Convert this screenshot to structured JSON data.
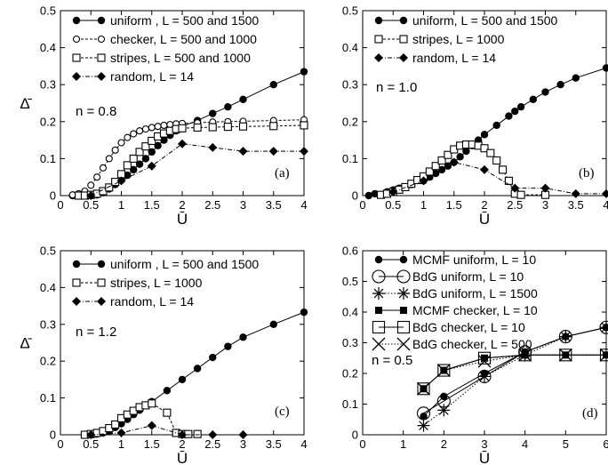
{
  "chart_data": [
    {
      "type": "line",
      "panel_label": "(a)",
      "annotation": "n = 0.8",
      "xlabel": "Ū",
      "ylabel": "Δ̄",
      "xlim": [
        0,
        4
      ],
      "ylim": [
        0,
        0.5
      ],
      "xticks": [
        "0",
        "0.5",
        "1",
        "1.5",
        "2",
        "2.5",
        "3",
        "3.5",
        "4"
      ],
      "yticks": [
        "0",
        "0.1",
        "0.2",
        "0.3",
        "0.4",
        "0.5"
      ],
      "legend_position": "top-left",
      "series": [
        {
          "name": "uniform , L = 500 and 1500",
          "marker": "filled-circle",
          "line": "solid",
          "x": [
            0.2,
            0.3,
            0.4,
            0.5,
            0.6,
            0.7,
            0.8,
            0.9,
            1.0,
            1.1,
            1.2,
            1.3,
            1.4,
            1.5,
            1.6,
            1.7,
            1.8,
            1.9,
            2.0,
            2.25,
            2.5,
            2.75,
            3.0,
            3.5,
            4.0
          ],
          "y": [
            0,
            0,
            0,
            0,
            0.002,
            0.008,
            0.018,
            0.03,
            0.042,
            0.055,
            0.07,
            0.085,
            0.1,
            0.118,
            0.135,
            0.15,
            0.163,
            0.175,
            0.187,
            0.203,
            0.222,
            0.24,
            0.26,
            0.3,
            0.335
          ]
        },
        {
          "name": "checker, L = 500 and 1000",
          "marker": "open-circle",
          "line": "dashed",
          "x": [
            0.2,
            0.3,
            0.4,
            0.5,
            0.6,
            0.7,
            0.8,
            0.9,
            1.0,
            1.1,
            1.2,
            1.3,
            1.4,
            1.5,
            1.6,
            1.7,
            1.8,
            1.9,
            2.0,
            2.25,
            2.5,
            2.75,
            3.0,
            3.5,
            4.0
          ],
          "y": [
            0.002,
            0.005,
            0.012,
            0.028,
            0.05,
            0.075,
            0.1,
            0.123,
            0.143,
            0.157,
            0.167,
            0.175,
            0.18,
            0.184,
            0.187,
            0.19,
            0.192,
            0.194,
            0.195,
            0.197,
            0.199,
            0.2,
            0.201,
            0.203,
            0.205
          ]
        },
        {
          "name": "stripes, L = 500 and 1000",
          "marker": "open-square",
          "line": "dashed",
          "x": [
            0.3,
            0.4,
            0.5,
            0.6,
            0.7,
            0.8,
            0.9,
            1.0,
            1.1,
            1.2,
            1.3,
            1.4,
            1.5,
            1.6,
            1.7,
            1.8,
            1.9,
            2.0,
            2.25,
            2.5,
            2.75,
            3.0,
            3.5,
            4.0
          ],
          "y": [
            0,
            0,
            0.002,
            0.005,
            0.012,
            0.022,
            0.037,
            0.058,
            0.082,
            0.1,
            0.118,
            0.133,
            0.148,
            0.16,
            0.168,
            0.175,
            0.18,
            0.182,
            0.184,
            0.185,
            0.186,
            0.187,
            0.188,
            0.19
          ]
        },
        {
          "name": "random, L = 14",
          "marker": "filled-diamond",
          "line": "dash-dot",
          "x": [
            0.5,
            1.0,
            1.5,
            2.0,
            2.5,
            3.0,
            3.5,
            4.0
          ],
          "y": [
            0,
            0.04,
            0.08,
            0.14,
            0.13,
            0.12,
            0.12,
            0.12
          ]
        }
      ]
    },
    {
      "type": "line",
      "panel_label": "(b)",
      "annotation": "n = 1.0",
      "xlabel": "Ū",
      "ylabel": "",
      "xlim": [
        0,
        4
      ],
      "ylim": [
        0,
        0.5
      ],
      "xticks": [
        "0",
        "0.5",
        "1",
        "1.5",
        "2",
        "2.5",
        "3",
        "3.5",
        "4"
      ],
      "yticks": [
        "0",
        "0.1",
        "0.2",
        "0.3",
        "0.4",
        "0.5"
      ],
      "legend_position": "top-left",
      "series": [
        {
          "name": "uniform, L = 500 and 1500",
          "marker": "filled-circle",
          "line": "solid",
          "x": [
            0.1,
            0.2,
            0.4,
            0.5,
            0.6,
            0.8,
            1.0,
            1.1,
            1.2,
            1.3,
            1.4,
            1.5,
            1.6,
            1.7,
            1.8,
            1.9,
            2.0,
            2.2,
            2.4,
            2.5,
            2.6,
            2.8,
            3.0,
            3.25,
            3.5,
            4.0
          ],
          "y": [
            0,
            0.005,
            0.01,
            0.015,
            0.02,
            0.03,
            0.04,
            0.05,
            0.06,
            0.07,
            0.08,
            0.09,
            0.105,
            0.12,
            0.135,
            0.15,
            0.165,
            0.19,
            0.215,
            0.228,
            0.24,
            0.26,
            0.28,
            0.3,
            0.318,
            0.345
          ]
        },
        {
          "name": "stripes, L = 1000",
          "marker": "open-square",
          "line": "dashed",
          "x": [
            0.3,
            0.4,
            0.5,
            0.6,
            0.7,
            0.8,
            0.9,
            1.0,
            1.1,
            1.2,
            1.3,
            1.4,
            1.5,
            1.6,
            1.7,
            1.8,
            1.9,
            2.0,
            2.1,
            2.2,
            2.3,
            2.4,
            2.5,
            2.6,
            3.0
          ],
          "y": [
            0.002,
            0.005,
            0.01,
            0.016,
            0.023,
            0.032,
            0.042,
            0.052,
            0.065,
            0.08,
            0.095,
            0.11,
            0.125,
            0.135,
            0.138,
            0.138,
            0.135,
            0.128,
            0.115,
            0.095,
            0.07,
            0.04,
            0.005,
            0.002,
            0.002
          ]
        },
        {
          "name": "random, L = 14",
          "marker": "filled-diamond",
          "line": "dash-dot",
          "x": [
            0.5,
            1.0,
            1.5,
            2.0,
            2.5,
            3.0,
            3.5,
            4.0
          ],
          "y": [
            0.01,
            0.04,
            0.09,
            0.07,
            0.02,
            0.02,
            0.005,
            0.005
          ]
        }
      ]
    },
    {
      "type": "line",
      "panel_label": "(c)",
      "annotation": "n = 1.2",
      "xlabel": "Ū",
      "ylabel": "Δ̄",
      "xlim": [
        0,
        4
      ],
      "ylim": [
        0,
        0.5
      ],
      "xticks": [
        "0",
        "0.5",
        "1",
        "1.5",
        "2",
        "2.5",
        "3",
        "3.5",
        "4"
      ],
      "yticks": [
        "0",
        "0.1",
        "0.2",
        "0.3",
        "0.4",
        "0.5"
      ],
      "legend_position": "top-left",
      "series": [
        {
          "name": "uniform , L = 500 and 1500",
          "marker": "filled-circle",
          "line": "solid",
          "x": [
            0.4,
            0.5,
            0.6,
            0.7,
            0.8,
            0.9,
            1.0,
            1.1,
            1.2,
            1.3,
            1.4,
            1.5,
            1.75,
            2.0,
            2.25,
            2.5,
            2.75,
            3.0,
            3.5,
            4.0
          ],
          "y": [
            0,
            0,
            0.002,
            0.005,
            0.01,
            0.02,
            0.03,
            0.042,
            0.055,
            0.067,
            0.08,
            0.09,
            0.12,
            0.15,
            0.18,
            0.21,
            0.24,
            0.265,
            0.3,
            0.333
          ]
        },
        {
          "name": "stripes, L = 1000",
          "marker": "open-square",
          "line": "dashed",
          "x": [
            0.4,
            0.5,
            0.6,
            0.7,
            0.8,
            0.9,
            1.0,
            1.1,
            1.2,
            1.3,
            1.4,
            1.5,
            1.75,
            1.9,
            2.0,
            2.1,
            2.25
          ],
          "y": [
            0,
            0.002,
            0.005,
            0.01,
            0.018,
            0.028,
            0.045,
            0.055,
            0.065,
            0.075,
            0.08,
            0.085,
            0.06,
            0.005,
            0.002,
            0.002,
            0.002
          ]
        },
        {
          "name": "random, L = 14",
          "marker": "filled-diamond",
          "line": "dash-dot",
          "x": [
            0.5,
            1.0,
            1.5,
            2.0,
            2.5,
            3.0
          ],
          "y": [
            0,
            0.005,
            0.025,
            0,
            0,
            0
          ]
        }
      ]
    },
    {
      "type": "line",
      "panel_label": "(d)",
      "annotation": "n = 0.5",
      "xlabel": "Ū",
      "ylabel": "",
      "xlim": [
        0,
        6
      ],
      "ylim": [
        0,
        0.6
      ],
      "xticks": [
        "0",
        "1",
        "2",
        "3",
        "4",
        "5",
        "6"
      ],
      "yticks": [
        "0",
        "0.1",
        "0.2",
        "0.3",
        "0.4",
        "0.5",
        "0.6"
      ],
      "legend_position": "top-left",
      "series": [
        {
          "name": "MCMF uniform, L = 10",
          "marker": "filled-circle",
          "line": "solid",
          "x": [
            1.5,
            2,
            3,
            4,
            5,
            6
          ],
          "y": [
            0.06,
            0.125,
            0.2,
            0.27,
            0.32,
            0.35
          ]
        },
        {
          "name": "BdG uniform, L = 10",
          "marker": "open-circle-large",
          "line": "solid",
          "x": [
            1.5,
            2,
            3,
            4,
            5,
            6
          ],
          "y": [
            0.07,
            0.11,
            0.19,
            0.27,
            0.32,
            0.35
          ]
        },
        {
          "name": "BdG uniform, L = 1500",
          "marker": "asterisk",
          "line": "dotted",
          "x": [
            1.5,
            2,
            3,
            4,
            5,
            6
          ],
          "y": [
            0.03,
            0.08,
            0.19,
            0.26,
            0.32,
            0.35
          ]
        },
        {
          "name": "MCMF checker, L = 10",
          "marker": "filled-square",
          "line": "solid",
          "x": [
            1.5,
            2,
            3,
            4,
            5,
            6
          ],
          "y": [
            0.15,
            0.21,
            0.25,
            0.26,
            0.26,
            0.26
          ]
        },
        {
          "name": "BdG checker, L = 10",
          "marker": "open-square-large",
          "line": "solid",
          "x": [
            1.5,
            2,
            3,
            4,
            5,
            6
          ],
          "y": [
            0.15,
            0.21,
            0.25,
            0.26,
            0.26,
            0.26
          ]
        },
        {
          "name": "BdG checker, L = 500",
          "marker": "cross",
          "line": "dotted",
          "x": [
            1.5,
            2,
            3,
            4,
            5,
            6
          ],
          "y": [
            0.15,
            0.21,
            0.24,
            0.26,
            0.26,
            0.26
          ]
        }
      ]
    }
  ]
}
